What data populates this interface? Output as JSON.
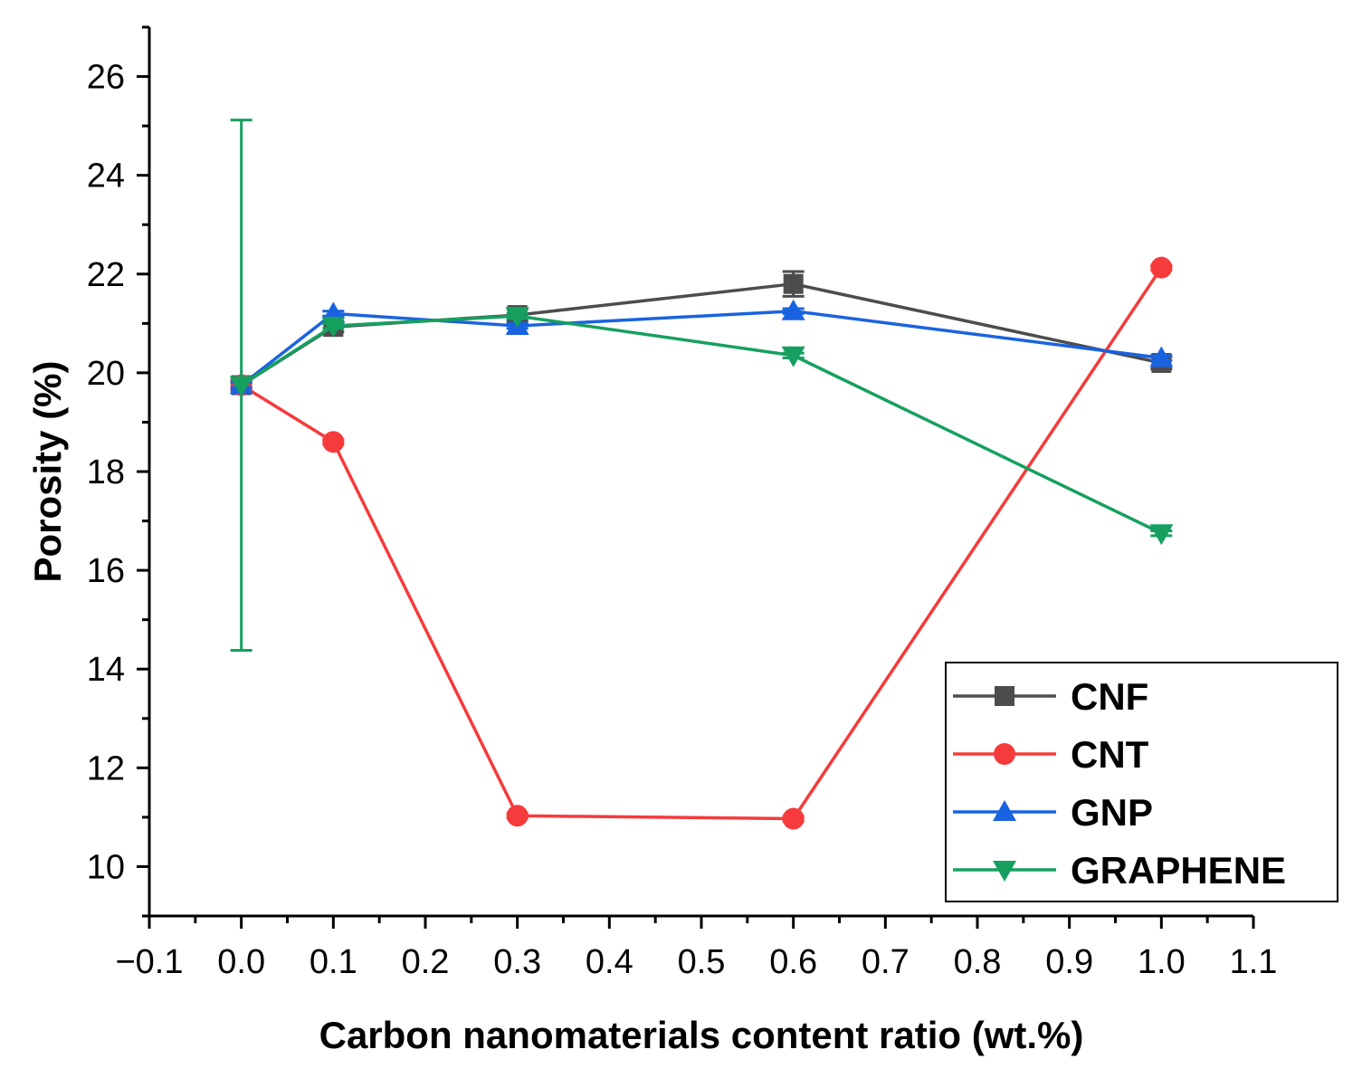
{
  "chart_data": {
    "type": "line",
    "xlabel": "Carbon nanomaterials content ratio (wt.%)",
    "ylabel": "Porosity (%)",
    "xlim": [
      -0.1,
      1.1
    ],
    "ylim": [
      9,
      27
    ],
    "xticks": [
      -0.1,
      0.0,
      0.1,
      0.2,
      0.3,
      0.4,
      0.5,
      0.6,
      0.7,
      0.8,
      0.9,
      1.0,
      1.1
    ],
    "xtick_labels": [
      "−0.1",
      "0.0",
      "0.1",
      "0.2",
      "0.3",
      "0.4",
      "0.5",
      "0.6",
      "0.7",
      "0.8",
      "0.9",
      "1.0",
      "1.1"
    ],
    "yticks": [
      10,
      12,
      14,
      16,
      18,
      20,
      22,
      24,
      26
    ],
    "ytick_labels": [
      "10",
      "12",
      "14",
      "16",
      "18",
      "20",
      "22",
      "24",
      "26"
    ],
    "grid": false,
    "legend_position": "bottom-right",
    "series": [
      {
        "name": "CNF",
        "color": "#4d4d4d",
        "marker": "square",
        "x": [
          0.0,
          0.1,
          0.3,
          0.6,
          1.0
        ],
        "y": [
          19.75,
          20.93,
          21.17,
          21.8,
          20.2
        ],
        "err": [
          0.1,
          0.1,
          0.12,
          0.25,
          0.12
        ]
      },
      {
        "name": "CNT",
        "color": "#f53b3b",
        "marker": "circle",
        "x": [
          0.0,
          0.1,
          0.3,
          0.6,
          1.0
        ],
        "y": [
          19.75,
          18.6,
          11.03,
          10.97,
          22.13
        ],
        "err": [
          0.05,
          0.05,
          0.05,
          0.05,
          0.05
        ]
      },
      {
        "name": "GNP",
        "color": "#1a63e0",
        "marker": "triangle-up",
        "x": [
          0.0,
          0.1,
          0.3,
          0.6,
          1.0
        ],
        "y": [
          19.75,
          21.2,
          20.95,
          21.25,
          20.3
        ],
        "err": [
          0.05,
          0.05,
          0.05,
          0.05,
          0.05
        ]
      },
      {
        "name": "GRAPHENE",
        "color": "#16a05f",
        "marker": "triangle-down",
        "x": [
          0.0,
          0.1,
          0.3,
          0.6,
          1.0
        ],
        "y": [
          19.75,
          20.95,
          21.15,
          20.35,
          16.75
        ],
        "err": [
          5.37,
          0.05,
          0.05,
          0.05,
          0.05
        ]
      }
    ]
  }
}
